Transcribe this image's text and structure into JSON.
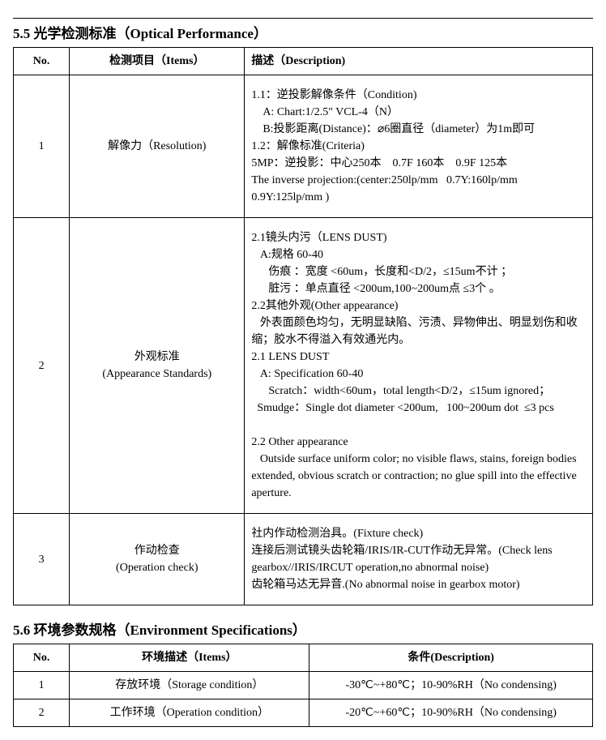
{
  "section55": {
    "title": "5.5 光学检测标准（Optical Performance）",
    "headers": {
      "no": "No.",
      "items": "检测项目（Items）",
      "desc": "描述（Description)"
    },
    "rows": [
      {
        "no": "1",
        "item": "解像力（Resolution)",
        "desc": "1.1：逆投影解像条件（Condition)\n    A: Chart:1/2.5\" VCL-4（N）\n    B:投影距离(Distance)：⌀6圈直径（diameter）为1m即可\n1.2：解像标准(Criteria)\n5MP：逆投影：中心250本    0.7F 160本    0.9F 125本\nThe inverse projection:(center:250lp/mm   0.7Y:160lp/mm\n0.9Y:125lp/mm )"
      },
      {
        "no": "2",
        "item": "外观标准\n(Appearance Standards)",
        "desc": "2.1镜头内污（LENS DUST)\n   A:规格 60-40\n      伤痕 ：宽度 <60um，长度和<D/2，≤15um不计 ；\n      脏污 ：单点直径 <200um,100~200um点 ≤3个 。\n2.2其他外观(Other appearance)\n   外表面颜色均匀，无明显缺陷、污渍、异物伸出、明显划伤和收缩；胶水不得溢入有效通光内。\n2.1 LENS DUST\n   A: Specification 60-40\n      Scratch：width<60um，total length<D/2，≤15um ignored；\n  Smudge：Single dot diameter <200um,   100~200um dot  ≤3 pcs\n\n2.2 Other appearance\n   Outside surface uniform color; no visible flaws, stains, foreign bodies extended, obvious scratch or contraction; no glue spill into the effective aperture."
      },
      {
        "no": "3",
        "item": "作动检查\n(Operation check)",
        "desc": "社内作动检测治具。(Fixture check)\n连接后测试镜头齿轮箱/IRIS/IR-CUT作动无异常。(Check lens gearbox//IRIS/IRCUT operation,no abnormal noise)\n齿轮箱马达无异音.(No abnormal noise in gearbox motor)"
      }
    ]
  },
  "section56": {
    "title": "5.6 环境参数规格（Environment Specifications）",
    "headers": {
      "no": "No.",
      "items": "环境描述（Items）",
      "desc": "条件(Description)"
    },
    "rows": [
      {
        "no": "1",
        "item": "存放环境（Storage condition）",
        "desc": "-30℃~+80℃；10-90%RH（No condensing)"
      },
      {
        "no": "2",
        "item": "工作环境（Operation condition）",
        "desc": "-20℃~+60℃；10-90%RH（No condensing)"
      }
    ]
  }
}
